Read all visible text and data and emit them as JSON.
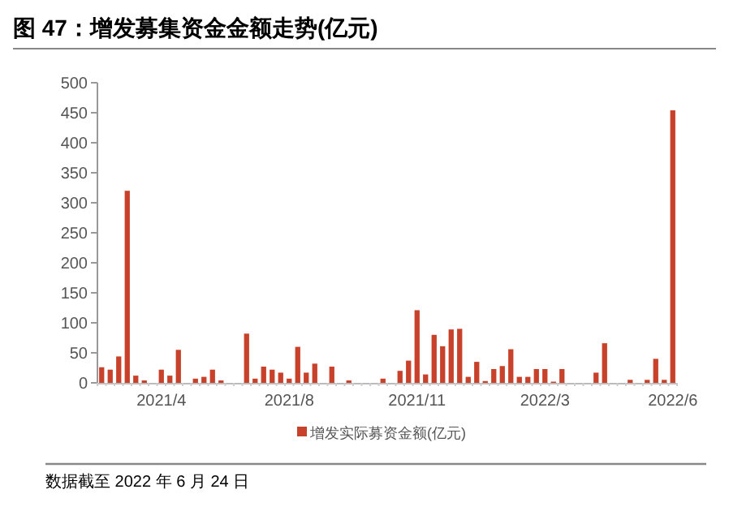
{
  "chart_data": {
    "type": "bar",
    "title": "图 47：增发募集资金金额走势(亿元)",
    "categories": [
      null,
      null,
      null,
      null,
      null,
      null,
      null,
      "2021/4",
      null,
      null,
      null,
      null,
      null,
      null,
      null,
      null,
      null,
      null,
      null,
      null,
      null,
      null,
      "2021/8",
      null,
      null,
      null,
      null,
      null,
      null,
      null,
      null,
      null,
      null,
      null,
      null,
      null,
      null,
      "2021/11",
      null,
      null,
      null,
      null,
      null,
      null,
      null,
      null,
      null,
      null,
      null,
      null,
      null,
      null,
      "2022/3",
      null,
      null,
      null,
      null,
      null,
      null,
      null,
      null,
      null,
      null,
      null,
      null,
      null,
      null,
      "2022/6"
    ],
    "series": [
      {
        "name": "增发实际募资金额(亿元)",
        "color": "#c8412b",
        "values": [
          26,
          22,
          44,
          320,
          12,
          4,
          0,
          22,
          12,
          55,
          0,
          7,
          10,
          22,
          4,
          0,
          0,
          82,
          7,
          27,
          22,
          17,
          7,
          60,
          17,
          32,
          0,
          27,
          0,
          4,
          0,
          0,
          0,
          7,
          0,
          20,
          37,
          121,
          14,
          80,
          61,
          89,
          90,
          10,
          35,
          3,
          23,
          28,
          56,
          10,
          10,
          23,
          23,
          2,
          23,
          0,
          0,
          0,
          17,
          66,
          0,
          0,
          5,
          0,
          5,
          40,
          5,
          454
        ]
      }
    ],
    "ylim": [
      0,
      500
    ],
    "yticks": [
      0,
      50,
      100,
      150,
      200,
      250,
      300,
      350,
      400,
      450,
      500
    ],
    "legend": "bottom",
    "grid": false,
    "annotations": [
      "数据截至 2022 年 6 月 24 日"
    ]
  }
}
